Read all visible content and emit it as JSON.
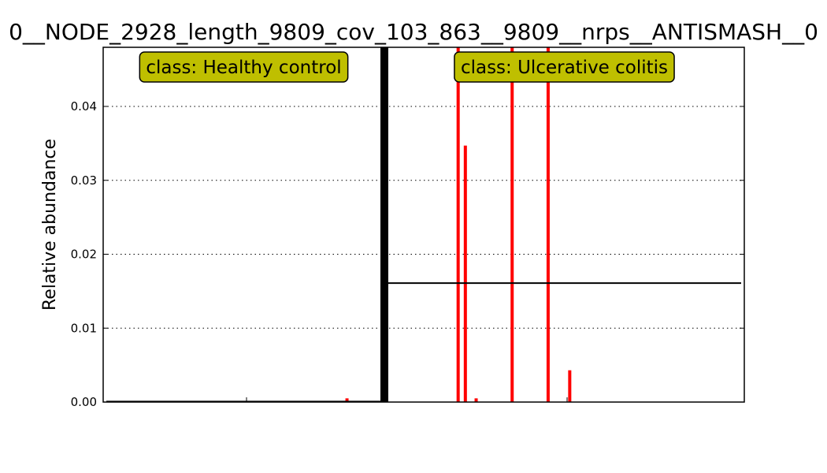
{
  "chart_data": {
    "type": "bar",
    "title": "0__NODE_2928_length_9809_cov_103_863__9809__nrps__ANTISMASH__0",
    "xlabel": "",
    "ylabel": "Relative abundance",
    "ylim": [
      0,
      0.048
    ],
    "yticks": [
      "0.00",
      "0.01",
      "0.02",
      "0.03",
      "0.04"
    ],
    "ytick_values": [
      0,
      0.01,
      0.02,
      0.03,
      0.04
    ],
    "grid": "horizontal dotted",
    "bar_color": "#ff0000",
    "groups": [
      {
        "label": "class: Healthy control",
        "sample_count": 79,
        "mean": 7e-05,
        "values": [
          {
            "index": 68,
            "value": 0.0005
          }
        ]
      },
      {
        "label": "class: Ulcerative colitis",
        "sample_count": 100,
        "mean": 0.0161,
        "values": [
          {
            "index": 20,
            "value": 0.048
          },
          {
            "index": 22,
            "value": 0.0347
          },
          {
            "index": 25,
            "value": 0.0005
          },
          {
            "index": 35,
            "value": 0.048
          },
          {
            "index": 45,
            "value": 0.048
          },
          {
            "index": 51,
            "value": 0.0043
          }
        ]
      }
    ],
    "label_box_color": "#bfbf00",
    "mean_line_color": "#000000",
    "separator_color": "#000000"
  }
}
